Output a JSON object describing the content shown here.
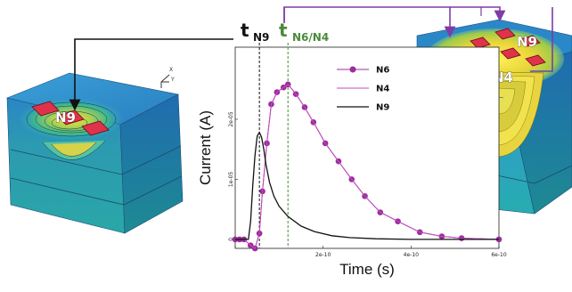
{
  "markers": {
    "n9": {
      "t": "t",
      "sub": "N9"
    },
    "n6n4": {
      "t": "t",
      "sub": "N6/N4"
    }
  },
  "labels": {
    "left_node": "N9",
    "right_n6": "N6",
    "right_n9": "N9",
    "right_n4": "N4",
    "axis_x_letter": "X",
    "axis_y_letter": "Y"
  },
  "colors": {
    "n6": "#9b2d9b",
    "n4": "#c04ac0",
    "n9": "#111111",
    "n6n4_marker": "#4a8a3a",
    "n9_marker": "#111111",
    "arrow_purple": "#7d3ca8"
  },
  "chart_data": {
    "type": "line",
    "title": "",
    "xlabel": "Time (s)",
    "ylabel": "Current (A)",
    "xlim": [
      0,
      6e-10
    ],
    "ylim": [
      -1.5e-06,
      3.2e-05
    ],
    "x_ticks": [
      {
        "value": 0,
        "label": "0"
      },
      {
        "value": 2e-10,
        "label": "2e-10"
      },
      {
        "value": 4e-10,
        "label": "4e-10"
      },
      {
        "value": 6e-10,
        "label": "6e-10"
      }
    ],
    "y_ticks": [
      {
        "value": 0,
        "label": "0"
      },
      {
        "value": 1e-05,
        "label": "1e-05"
      },
      {
        "value": 2e-05,
        "label": "2e-05"
      }
    ],
    "legend_position": "top-right",
    "series": [
      {
        "name": "N6",
        "style": "line-markers",
        "x": [
          0,
          1e-11,
          2e-11,
          3.5e-11,
          4.5e-11,
          5.5e-11,
          6.2e-11,
          7.2e-11,
          8.2e-11,
          9.5e-11,
          1.1e-10,
          1.2e-10,
          1.38e-10,
          1.58e-10,
          1.78e-10,
          2.05e-10,
          2.35e-10,
          2.65e-10,
          2.95e-10,
          3.3e-10,
          3.7e-10,
          4.2e-10,
          4.7e-10,
          5.15e-10,
          6e-10
        ],
        "y": [
          0,
          0,
          0,
          -1e-06,
          -1.5e-06,
          1e-06,
          8e-06,
          1.6e-05,
          2.25e-05,
          2.45e-05,
          2.53e-05,
          2.58e-05,
          2.42e-05,
          2.2e-05,
          1.95e-05,
          1.6e-05,
          1.3e-05,
          1e-05,
          7.2e-06,
          4.5e-06,
          3e-06,
          1.2e-06,
          5e-07,
          2e-07,
          0
        ]
      },
      {
        "name": "N4",
        "style": "line",
        "x": [
          0,
          2e-11,
          3.5e-11,
          4.5e-11,
          5.5e-11,
          6.2e-11,
          7.2e-11,
          8.2e-11,
          9.5e-11,
          1.1e-10,
          1.2e-10,
          1.38e-10,
          1.58e-10,
          1.78e-10,
          2.05e-10,
          2.35e-10,
          2.65e-10,
          2.95e-10,
          3.3e-10,
          3.7e-10,
          4.2e-10,
          4.7e-10,
          5.15e-10,
          6e-10
        ],
        "y": [
          0,
          0,
          -1e-06,
          -1.5e-06,
          1e-06,
          8e-06,
          1.6e-05,
          2.25e-05,
          2.45e-05,
          2.53e-05,
          2.58e-05,
          2.42e-05,
          2.2e-05,
          1.95e-05,
          1.6e-05,
          1.3e-05,
          1e-05,
          7.2e-06,
          4.5e-06,
          3e-06,
          1.2e-06,
          5e-07,
          2e-07,
          0
        ]
      },
      {
        "name": "N9",
        "style": "line",
        "x": [
          0,
          2e-11,
          3e-11,
          3.5e-11,
          4e-11,
          4.5e-11,
          5e-11,
          5.5e-11,
          6e-11,
          6.5e-11,
          7e-11,
          7.8e-11,
          8.8e-11,
          1e-10,
          1.2e-10,
          1.5e-10,
          1.8e-10,
          2.2e-10,
          2.6e-10,
          3.2e-10,
          4e-10,
          6e-10
        ],
        "y": [
          0,
          0,
          0,
          3e-06,
          9e-06,
          1.4e-05,
          1.72e-05,
          1.78e-05,
          1.7e-05,
          1.5e-05,
          1.25e-05,
          9.5e-06,
          7.2e-06,
          5.5e-06,
          3.8e-06,
          2.2e-06,
          1.3e-06,
          6e-07,
          3e-07,
          1e-07,
          0,
          0
        ]
      }
    ]
  }
}
